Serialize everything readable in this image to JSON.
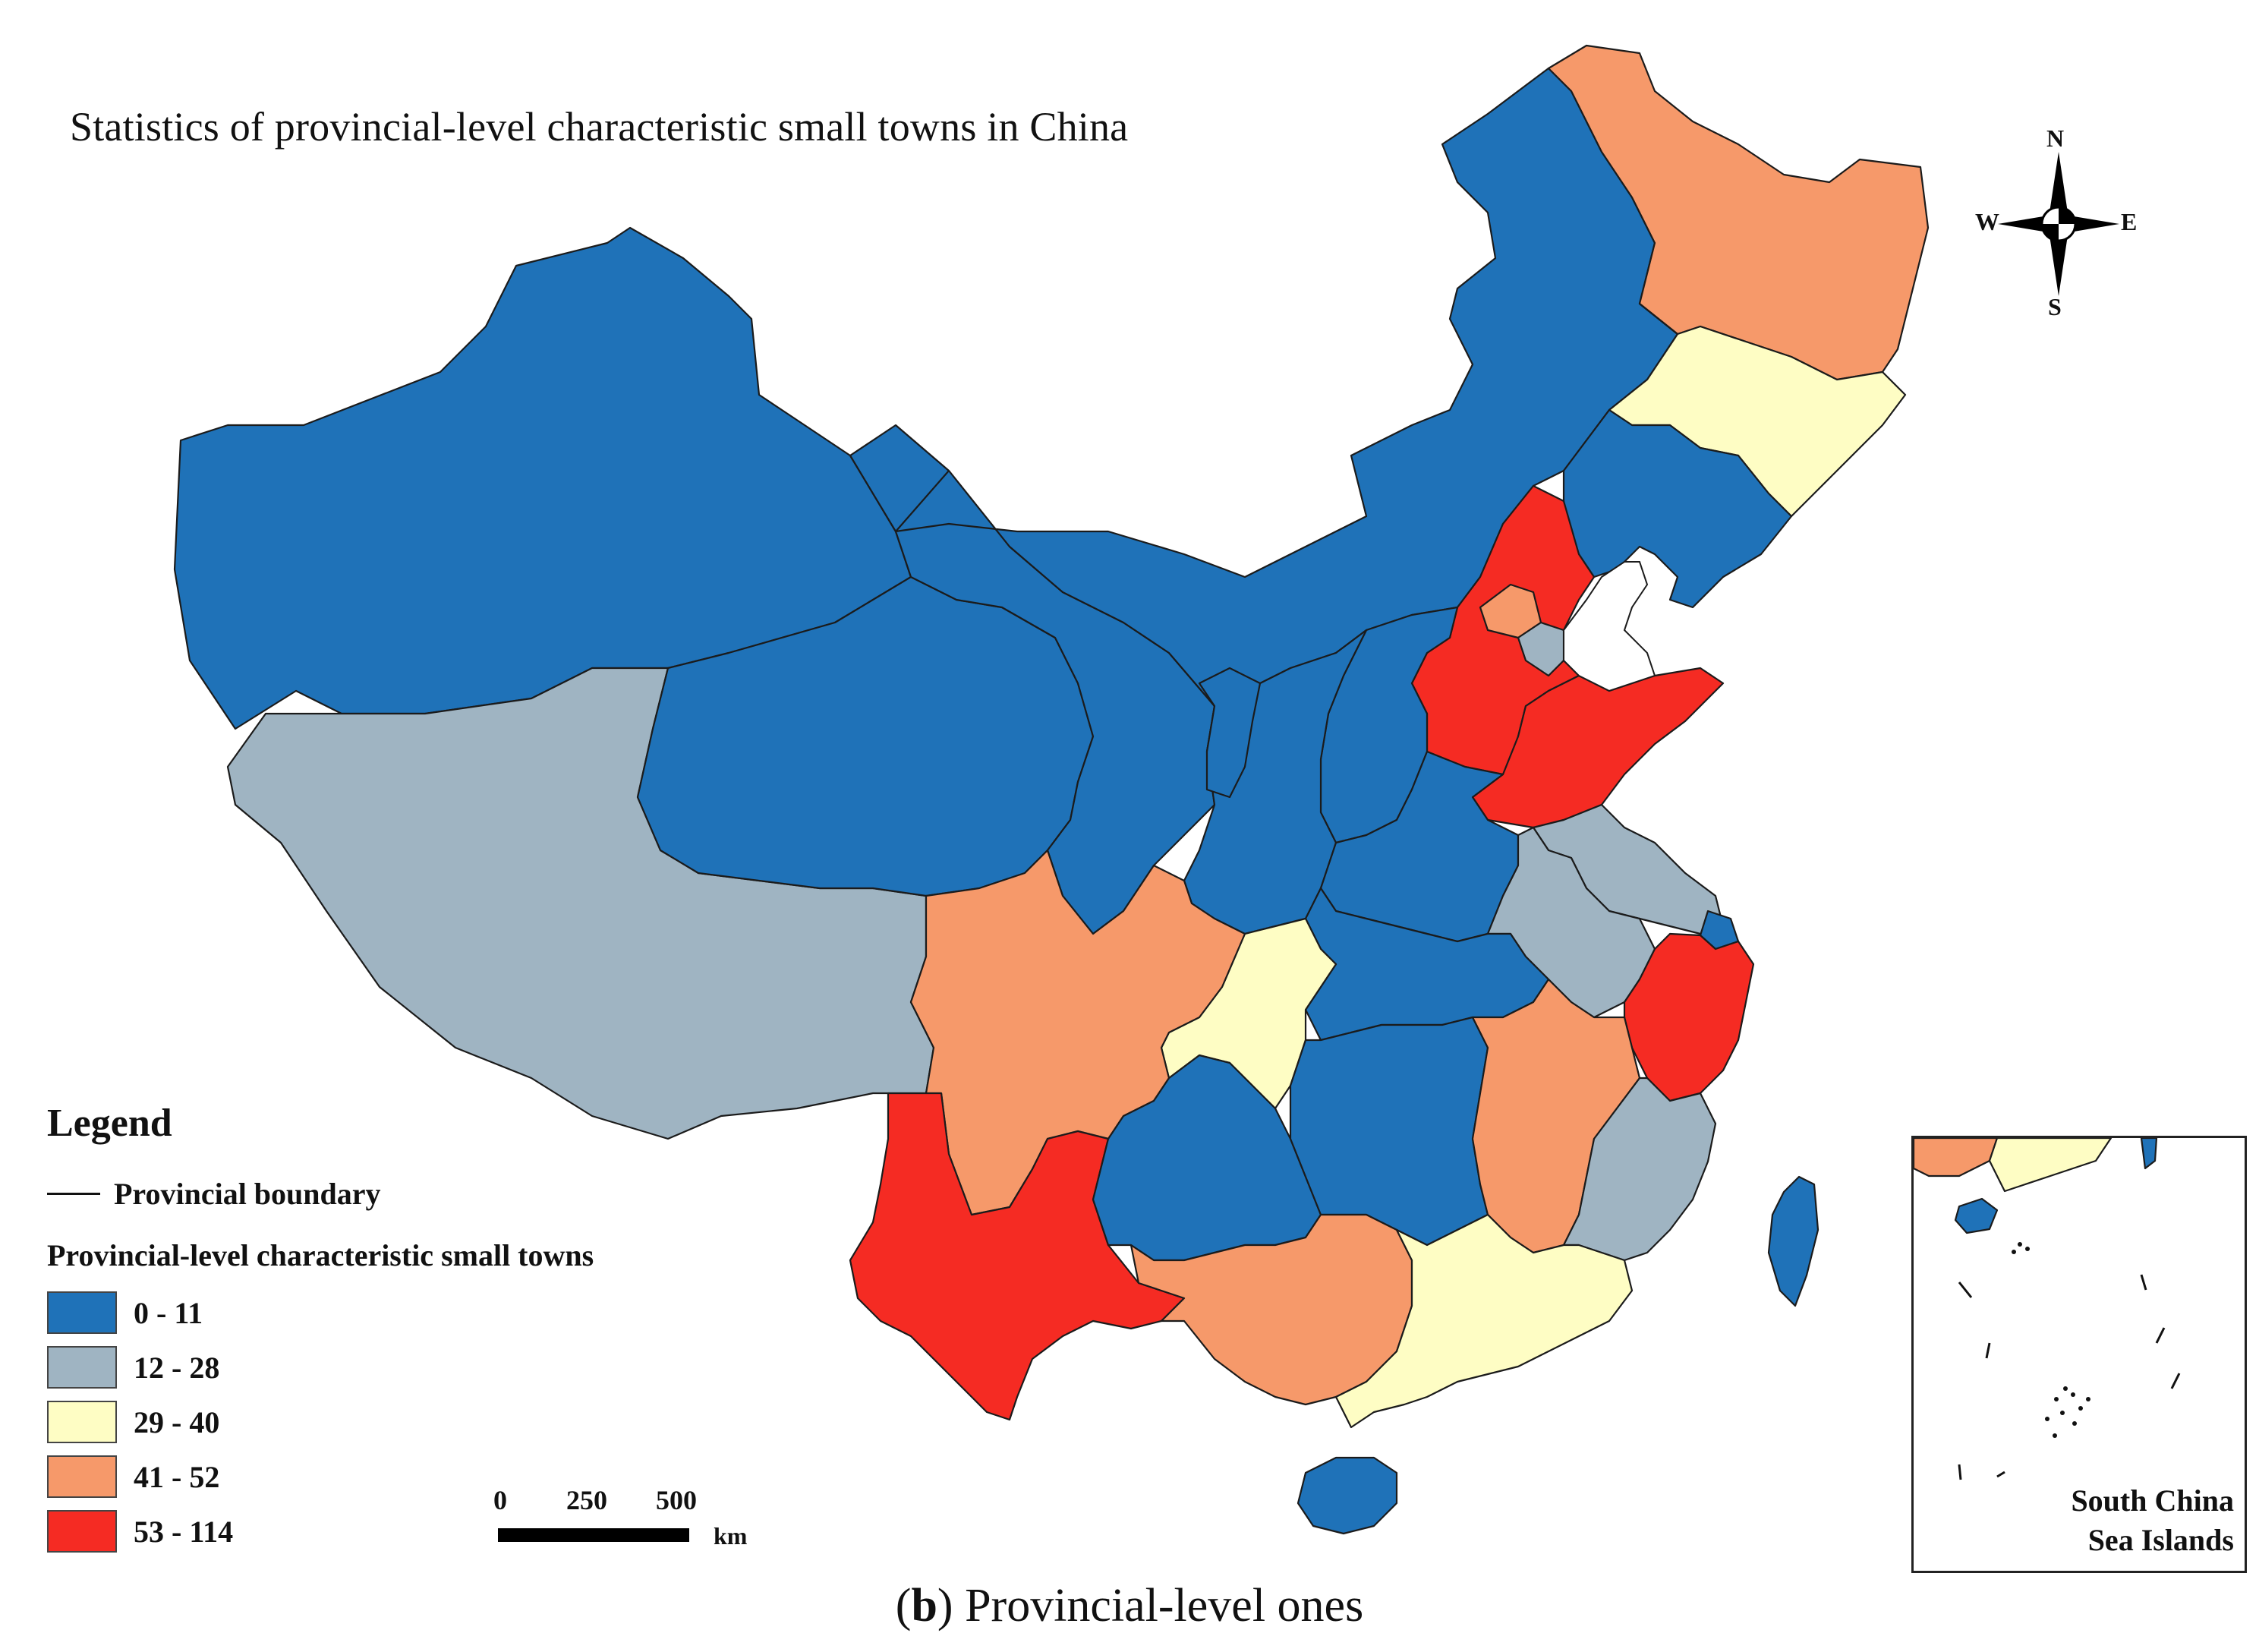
{
  "title": "Statistics of provincial-level characteristic small towns in China",
  "caption": {
    "letter": "b",
    "text": ") Provincial-level ones",
    "open": "("
  },
  "legend": {
    "heading": "Legend",
    "boundary_label": "Provincial boundary",
    "subtitle": "Provincial-level characteristic small towns",
    "classes": [
      {
        "label": "0 - 11",
        "color": "#1f72b8"
      },
      {
        "label": "12 - 28",
        "color": "#9fb4c2"
      },
      {
        "label": "29 - 40",
        "color": "#fefdc4"
      },
      {
        "label": "41 - 52",
        "color": "#f6996a"
      },
      {
        "label": "53 - 114",
        "color": "#f52b23"
      }
    ]
  },
  "scalebar": {
    "labels": [
      "0",
      "250",
      "500"
    ],
    "unit": "km"
  },
  "compass": {
    "n": "N",
    "s": "S",
    "e": "E",
    "w": "W"
  },
  "inset": {
    "label_line1": "South China",
    "label_line2": "Sea Islands"
  },
  "provinces": [
    {
      "name": "Xinjiang",
      "class": 0
    },
    {
      "name": "Tibet",
      "class": 1
    },
    {
      "name": "Qinghai",
      "class": 0
    },
    {
      "name": "Gansu",
      "class": 0
    },
    {
      "name": "Inner Mongolia",
      "class": 0
    },
    {
      "name": "Heilongjiang",
      "class": 3
    },
    {
      "name": "Jilin",
      "class": 2
    },
    {
      "name": "Liaoning",
      "class": 0
    },
    {
      "name": "Hebei",
      "class": 4
    },
    {
      "name": "Beijing",
      "class": 3
    },
    {
      "name": "Tianjin",
      "class": 1
    },
    {
      "name": "Shandong",
      "class": 4
    },
    {
      "name": "Shanxi",
      "class": 0
    },
    {
      "name": "Shaanxi",
      "class": 0
    },
    {
      "name": "Ningxia",
      "class": 0
    },
    {
      "name": "Henan",
      "class": 0
    },
    {
      "name": "Jiangsu",
      "class": 1
    },
    {
      "name": "Anhui",
      "class": 1
    },
    {
      "name": "Shanghai",
      "class": 0
    },
    {
      "name": "Zhejiang",
      "class": 4
    },
    {
      "name": "Hubei",
      "class": 0
    },
    {
      "name": "Chongqing",
      "class": 2
    },
    {
      "name": "Sichuan",
      "class": 3
    },
    {
      "name": "Yunnan",
      "class": 4
    },
    {
      "name": "Guizhou",
      "class": 0
    },
    {
      "name": "Hunan",
      "class": 0
    },
    {
      "name": "Jiangxi",
      "class": 3
    },
    {
      "name": "Fujian",
      "class": 1
    },
    {
      "name": "Guangxi",
      "class": 3
    },
    {
      "name": "Guangdong",
      "class": 2
    },
    {
      "name": "Hainan",
      "class": 0
    },
    {
      "name": "Taiwan",
      "class": 0
    }
  ]
}
